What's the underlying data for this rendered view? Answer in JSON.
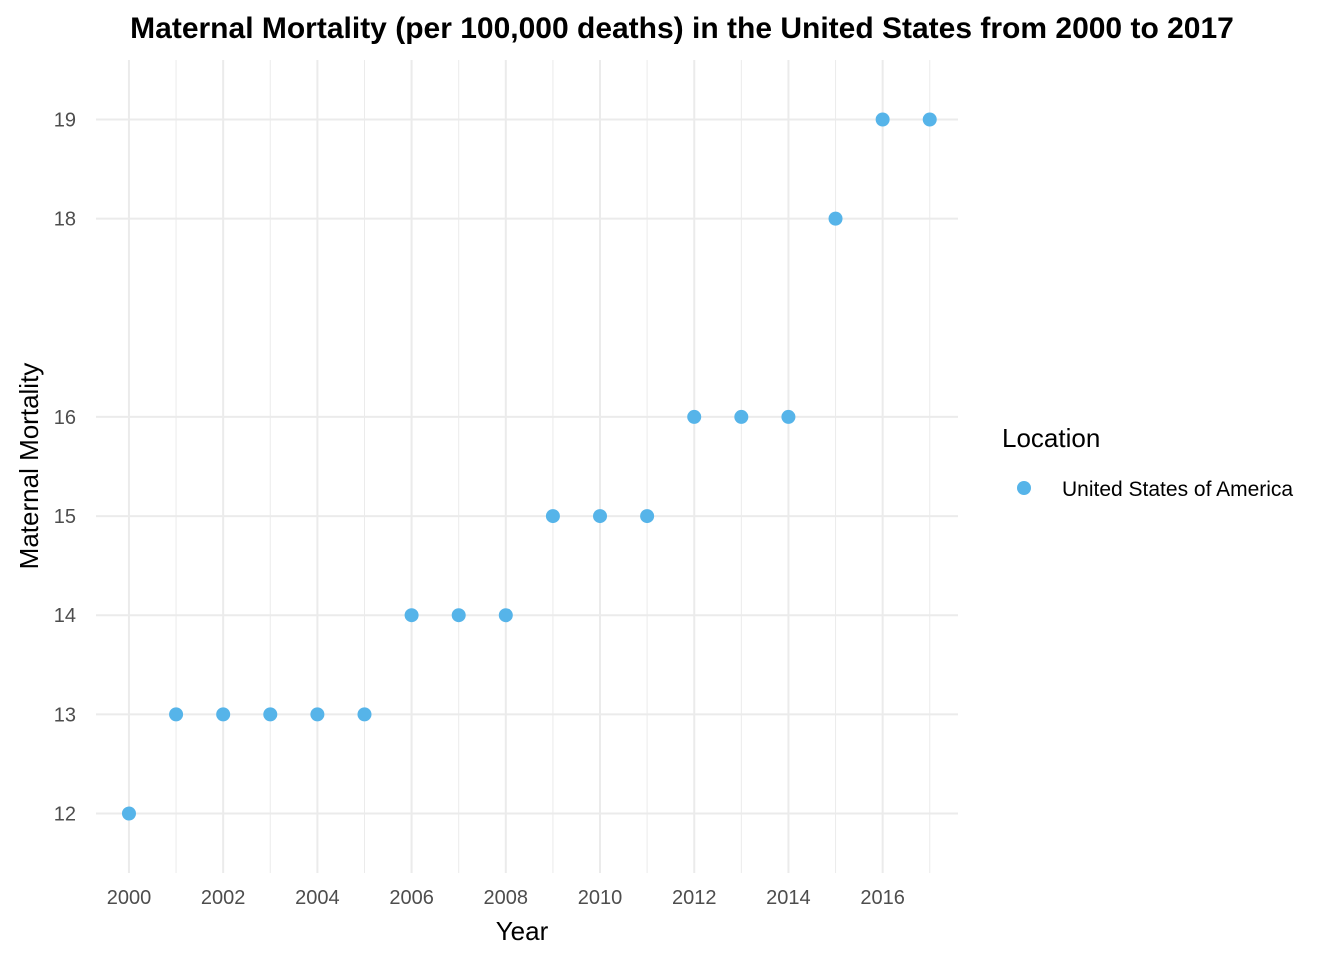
{
  "chart_data": {
    "type": "scatter",
    "title": "Maternal Mortality (per 100,000 deaths) in the United States from 2000 to 2017",
    "xlabel": "Year",
    "ylabel": "Maternal Mortality",
    "xlim": [
      1999.3,
      2017.6
    ],
    "ylim": [
      11.4,
      19.6
    ],
    "x_ticks": [
      2000,
      2002,
      2004,
      2006,
      2008,
      2010,
      2012,
      2014,
      2016
    ],
    "y_ticks": [
      12,
      13,
      14,
      15,
      16,
      18,
      19
    ],
    "x_tick_labels": [
      "2000",
      "2002",
      "2004",
      "2006",
      "2008",
      "2010",
      "2012",
      "2014",
      "2016"
    ],
    "y_tick_labels": [
      "12",
      "13",
      "14",
      "15",
      "16",
      "18",
      "19"
    ],
    "grid": true,
    "legend": {
      "title": "Location",
      "placement": "right",
      "entries": [
        "United States of America"
      ]
    },
    "series": [
      {
        "name": "United States of America",
        "color": "#56B4E9",
        "x": [
          2000,
          2001,
          2002,
          2003,
          2004,
          2005,
          2006,
          2007,
          2008,
          2009,
          2010,
          2011,
          2012,
          2013,
          2014,
          2015,
          2016,
          2017
        ],
        "y": [
          12,
          13,
          13,
          13,
          13,
          13,
          14,
          14,
          14,
          15,
          15,
          15,
          16,
          16,
          16,
          18,
          19,
          19
        ]
      }
    ]
  }
}
